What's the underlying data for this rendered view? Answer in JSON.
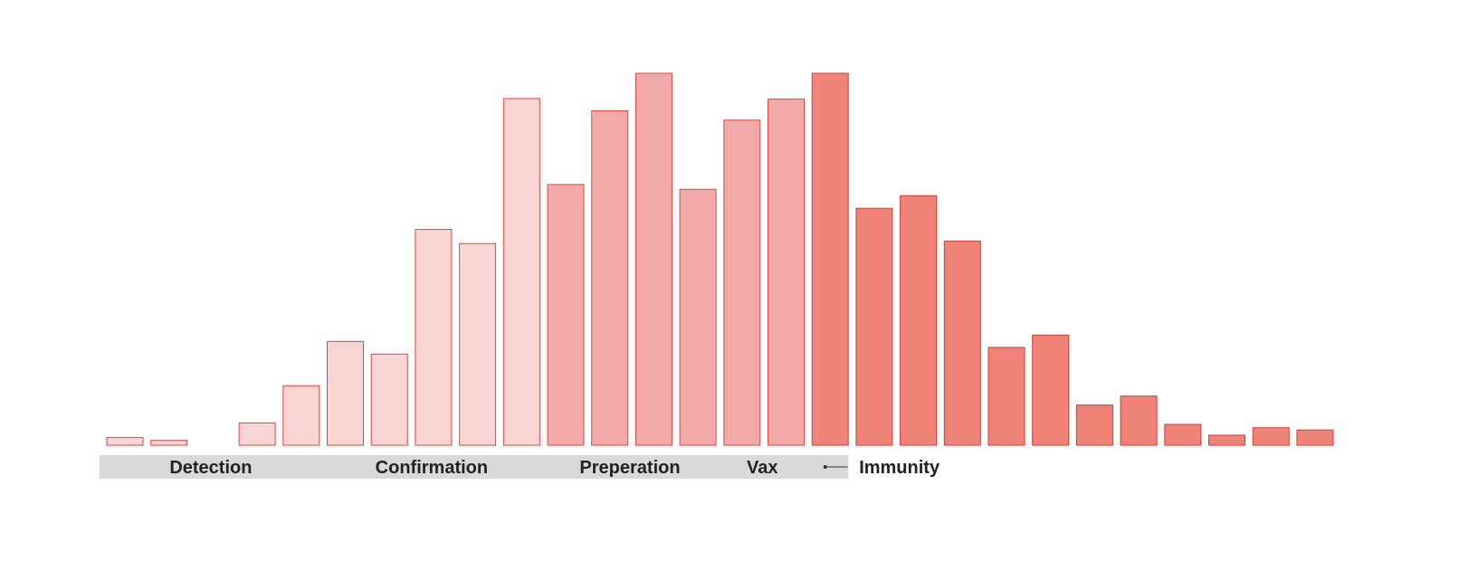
{
  "chart_data": {
    "type": "bar",
    "title": "",
    "xlabel": "",
    "ylabel": "",
    "ylim": [
      0,
      100
    ],
    "grid": false,
    "legend": "none",
    "values": [
      2.1,
      1.3,
      0,
      6.0,
      16.0,
      27.9,
      24.5,
      58.0,
      54.2,
      93.2,
      70.1,
      89.9,
      100,
      68.8,
      87.4,
      93.1,
      100,
      63.7,
      67.1,
      54.9,
      26.3,
      29.6,
      10.8,
      13.2,
      5.6,
      2.7,
      4.7,
      4.1
    ],
    "phases": [
      {
        "label": "Detection",
        "start": 0,
        "end": 4,
        "fill": "#f8d5d5",
        "stroke": "#e0453f"
      },
      {
        "label": "Confirmation",
        "start": 5,
        "end": 9,
        "fill": "#f8d5d5",
        "stroke": "#e0453f"
      },
      {
        "label": "Preperation",
        "start": 10,
        "end": 13,
        "fill": "#f1aaa8",
        "stroke": "#e0453f"
      },
      {
        "label": "Vax",
        "start": 14,
        "end": 15,
        "fill": "#f1aaa8",
        "stroke": "#e0453f"
      },
      {
        "label": "Immunity",
        "start": 16,
        "end": 27,
        "fill": "#f08378",
        "stroke": "#d43a33"
      }
    ],
    "band_color": "#d9d9d9",
    "label_color": "#222222"
  }
}
